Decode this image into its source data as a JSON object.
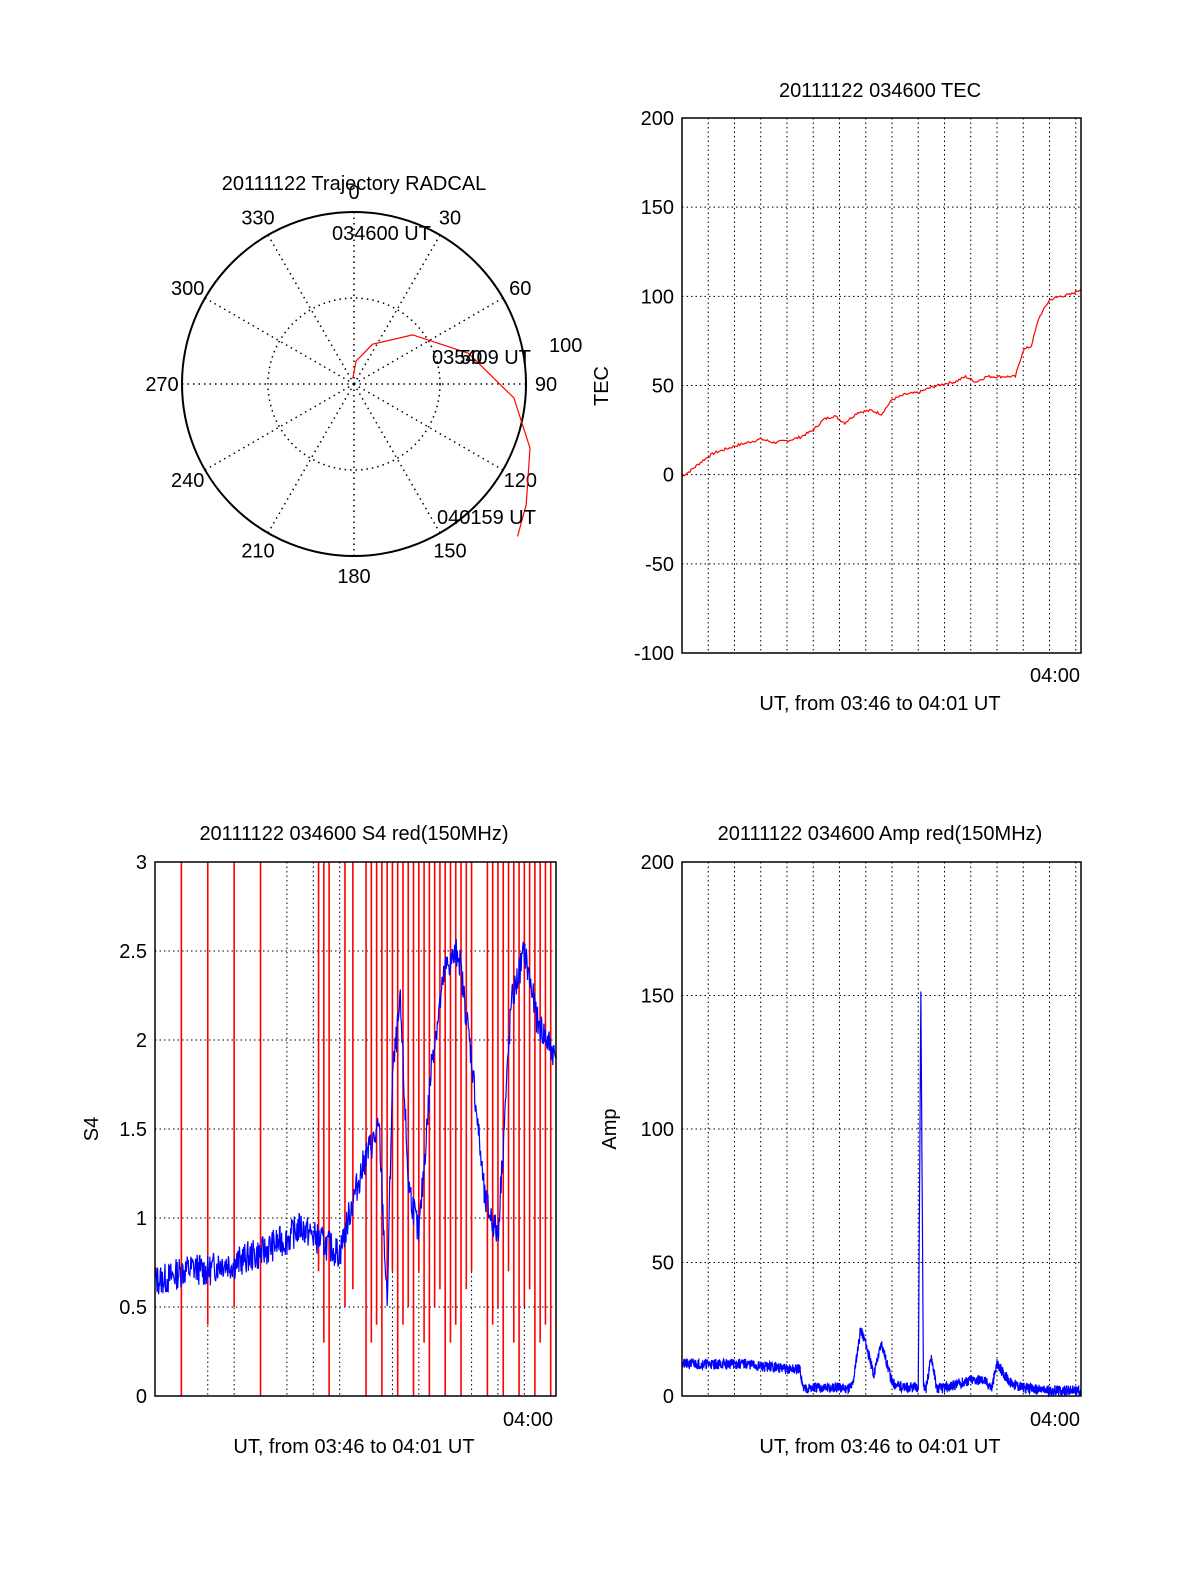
{
  "chart_data": [
    {
      "type": "polar",
      "title": "20111122 Trajectory RADCAL",
      "angle_labels": [
        "0",
        "30",
        "60",
        "90",
        "120",
        "150",
        "180",
        "210",
        "240",
        "270",
        "300",
        "330"
      ],
      "radius_labels": [
        "50",
        "100"
      ],
      "trajectory": {
        "color": "#ff0000",
        "start_label": "034600 UT",
        "mid_label": "035409 UT",
        "end_label": "040159 UT",
        "points": [
          {
            "az": 348,
            "el": 87
          },
          {
            "az": 5,
            "el": 78
          },
          {
            "az": 25,
            "el": 67
          },
          {
            "az": 50,
            "el": 50
          },
          {
            "az": 75,
            "el": 28
          },
          {
            "az": 95,
            "el": 6
          },
          {
            "az": 110,
            "el": -8
          },
          {
            "az": 125,
            "el": -20
          },
          {
            "az": 133,
            "el": -27
          }
        ]
      }
    },
    {
      "type": "line",
      "title": "20111122 034600 TEC",
      "xlabel": "UT, from 03:46 to 04:01 UT",
      "ylabel": "TEC",
      "ylim": [
        -100,
        200
      ],
      "yticks": [
        "-100",
        "-50",
        "0",
        "50",
        "100",
        "150",
        "200"
      ],
      "xlim": [
        0,
        15.2
      ],
      "xtick_label": "04:00",
      "xtick_value": 14,
      "grid": true,
      "series": [
        {
          "color": "#ff0000",
          "x": [
            0,
            0.3,
            0.8,
            1.2,
            1.6,
            2.0,
            2.5,
            3.0,
            3.5,
            4.0,
            4.5,
            5.0,
            5.4,
            5.8,
            6.2,
            6.7,
            7.2,
            7.6,
            8.0,
            8.5,
            9.0,
            9.5,
            10.0,
            10.4,
            10.8,
            11.2,
            11.6,
            12.0,
            12.4,
            12.7,
            13.0,
            13.3,
            13.6,
            14.0,
            14.4,
            14.8,
            15.2
          ],
          "y": [
            -1,
            2,
            8,
            12,
            14,
            16,
            18,
            20,
            18,
            19,
            21,
            25,
            31,
            33,
            29,
            35,
            36,
            34,
            42,
            45,
            46,
            49,
            51,
            52,
            55,
            52,
            55,
            55,
            55,
            55,
            70,
            72,
            88,
            98,
            100,
            101,
            104
          ]
        }
      ]
    },
    {
      "type": "line",
      "title": "20111122 034600 S4 red(150MHz)",
      "xlabel": "UT, from 03:46 to 04:01 UT",
      "ylabel": "S4",
      "ylim": [
        0,
        3
      ],
      "yticks": [
        "0",
        "0.5",
        "1",
        "1.5",
        "2",
        "2.5",
        "3"
      ],
      "xlim": [
        0,
        15.2
      ],
      "xtick_label": "04:00",
      "xtick_value": 14,
      "grid": true,
      "series": [
        {
          "color": "#0000ff",
          "x": [
            0,
            0.5,
            1.0,
            1.5,
            2.0,
            2.5,
            3.0,
            3.5,
            4.0,
            4.5,
            5.0,
            5.5,
            6.0,
            6.5,
            7.0,
            7.5,
            8.0,
            8.5,
            8.8,
            9.0,
            9.3,
            9.6,
            10.0,
            10.5,
            11.0,
            11.5,
            12.0,
            12.5,
            13.0,
            13.5,
            14.0,
            14.5,
            15.2
          ],
          "y": [
            0.65,
            0.66,
            0.7,
            0.72,
            0.7,
            0.75,
            0.74,
            0.78,
            0.8,
            0.85,
            0.88,
            0.95,
            0.9,
            0.85,
            0.8,
            1.1,
            1.35,
            1.5,
            0.5,
            1.8,
            2.2,
            1.2,
            0.9,
            1.9,
            2.4,
            2.5,
            1.9,
            1.1,
            0.9,
            2.2,
            2.5,
            2.1,
            1.9
          ]
        },
        {
          "color": "#ff0000",
          "spike_x": [
            1.0,
            2.0,
            3.0,
            4.0,
            6.2,
            6.4,
            6.6,
            7.2,
            7.5,
            8.0,
            8.2,
            8.4,
            8.6,
            8.8,
            9.0,
            9.2,
            9.4,
            9.6,
            9.8,
            10.0,
            10.2,
            10.4,
            10.6,
            10.8,
            11.0,
            11.2,
            11.4,
            11.6,
            11.8,
            12.0,
            12.6,
            12.8,
            13.0,
            13.2,
            13.4,
            13.6,
            13.8,
            14.0,
            14.2,
            14.4,
            14.6,
            14.8,
            15.0
          ]
        }
      ]
    },
    {
      "type": "line",
      "title": "20111122 034600 Amp red(150MHz)",
      "xlabel": "UT, from 03:46 to 04:01 UT",
      "ylabel": "Amp",
      "ylim": [
        0,
        200
      ],
      "yticks": [
        "0",
        "50",
        "100",
        "150",
        "200"
      ],
      "xlim": [
        0,
        15.2
      ],
      "xtick_label": "04:00",
      "xtick_value": 14,
      "grid": true,
      "series": [
        {
          "color": "#0000ff",
          "x": [
            0,
            0.5,
            1.0,
            1.5,
            2.0,
            2.5,
            3.0,
            3.5,
            4.0,
            4.5,
            4.6,
            5.5,
            6.0,
            6.3,
            6.5,
            6.8,
            7.0,
            7.3,
            7.6,
            8.0,
            8.5,
            9.0,
            9.1,
            9.2,
            9.3,
            9.5,
            9.7,
            10.0,
            11.0,
            11.5,
            11.8,
            12.0,
            12.5,
            13.0,
            14.0,
            15.2
          ],
          "y": [
            12,
            12,
            12,
            12,
            12,
            12,
            11,
            11,
            10,
            10,
            3,
            3,
            3,
            3,
            4,
            25,
            20,
            8,
            20,
            5,
            3,
            3,
            150,
            3,
            3,
            15,
            3,
            3,
            6,
            6,
            3,
            12,
            5,
            3,
            2,
            2
          ]
        }
      ]
    }
  ]
}
